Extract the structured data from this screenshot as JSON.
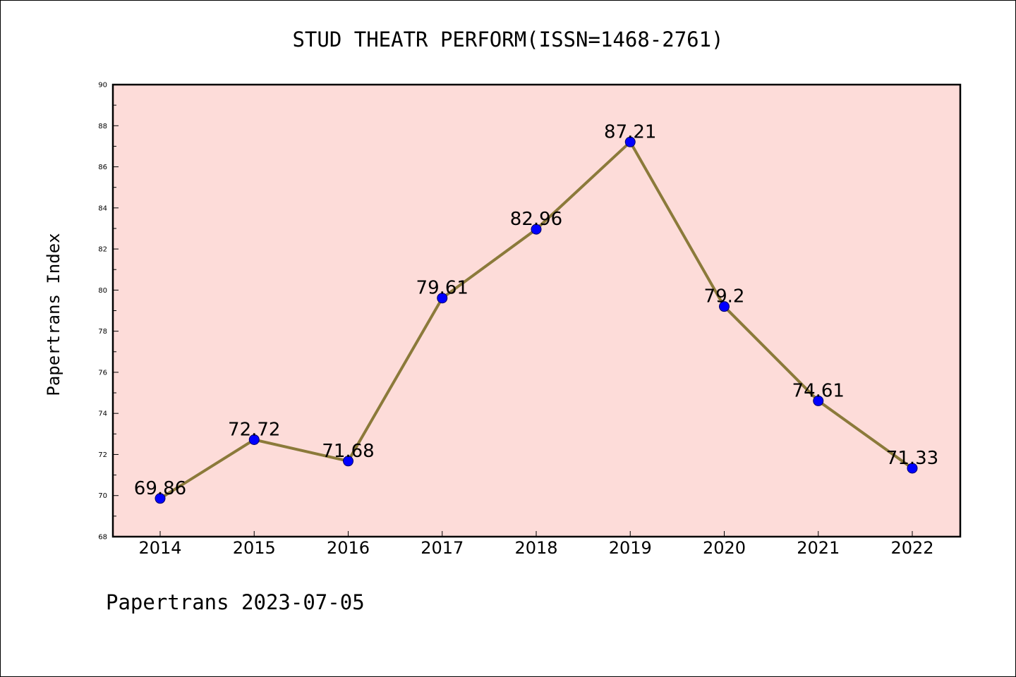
{
  "chart_data": {
    "type": "line",
    "title": "STUD THEATR PERFORM(ISSN=1468-2761)",
    "xlabel": "",
    "ylabel": "Papertrans Index",
    "footer": "Papertrans 2023-07-05",
    "categories": [
      "2014",
      "2015",
      "2016",
      "2017",
      "2018",
      "2019",
      "2020",
      "2021",
      "2022"
    ],
    "values": [
      69.86,
      72.72,
      71.68,
      79.61,
      82.96,
      87.21,
      79.2,
      74.61,
      71.33
    ],
    "value_labels": [
      "69.86",
      "72.72",
      "71.68",
      "79.61",
      "82.96",
      "87.21",
      "79.2",
      "74.61",
      "71.33"
    ],
    "ylim": [
      68,
      90
    ],
    "yticks": [
      68,
      70,
      72,
      74,
      76,
      78,
      80,
      82,
      84,
      86,
      88,
      90
    ],
    "grid": false,
    "colors": {
      "plot_background": "#fddcd9",
      "line": "#8b7a3a",
      "marker": "#0000ff",
      "axis": "#000000"
    }
  }
}
